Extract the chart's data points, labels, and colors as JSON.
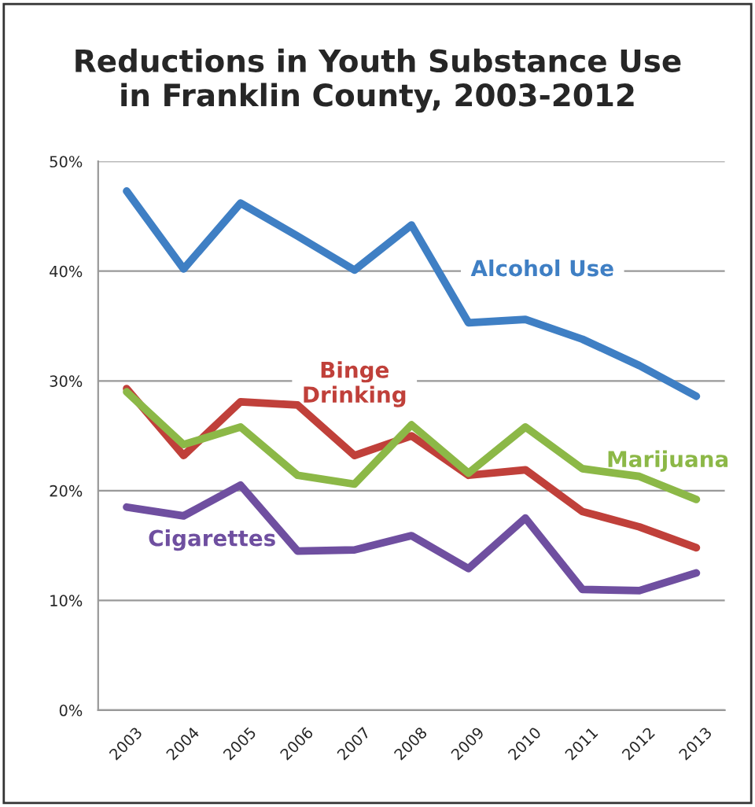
{
  "chart_data": {
    "type": "line",
    "title": "Reductions in Youth Substance Use\nin Franklin County, 2003-2012",
    "categories": [
      "2003",
      "2004",
      "2005",
      "2006",
      "2007",
      "2008",
      "2009",
      "2010",
      "2011",
      "2012",
      "2013"
    ],
    "series": [
      {
        "name": "Alcohol Use",
        "color": "#3f7fc4",
        "values": [
          47.3,
          40.2,
          46.2,
          43.2,
          40.1,
          44.2,
          35.3,
          35.6,
          33.8,
          31.4,
          28.6
        ]
      },
      {
        "name": "Binge\nDrinking",
        "color": "#c0403a",
        "values": [
          29.3,
          23.2,
          28.1,
          27.8,
          23.2,
          25.0,
          21.4,
          21.9,
          18.1,
          16.7,
          14.8
        ]
      },
      {
        "name": "Marijuana",
        "color": "#8cb847",
        "values": [
          29.0,
          24.2,
          25.8,
          21.4,
          20.6,
          26.0,
          21.6,
          25.8,
          22.0,
          21.3,
          19.2
        ]
      },
      {
        "name": "Cigarettes",
        "color": "#6f4fa0",
        "values": [
          18.5,
          17.7,
          20.5,
          14.5,
          14.6,
          15.9,
          12.9,
          17.5,
          11.0,
          10.9,
          12.5
        ]
      }
    ],
    "ylim": [
      0,
      50
    ],
    "yticks": [
      {
        "value": 0,
        "label": "0%"
      },
      {
        "value": 10,
        "label": "10%"
      },
      {
        "value": 20,
        "label": "20%"
      },
      {
        "value": 30,
        "label": "30%"
      },
      {
        "value": 40,
        "label": "40%"
      },
      {
        "value": 50,
        "label": "50%"
      }
    ],
    "grid": "y",
    "legend": false,
    "marker": "none",
    "line_style": "solid"
  }
}
